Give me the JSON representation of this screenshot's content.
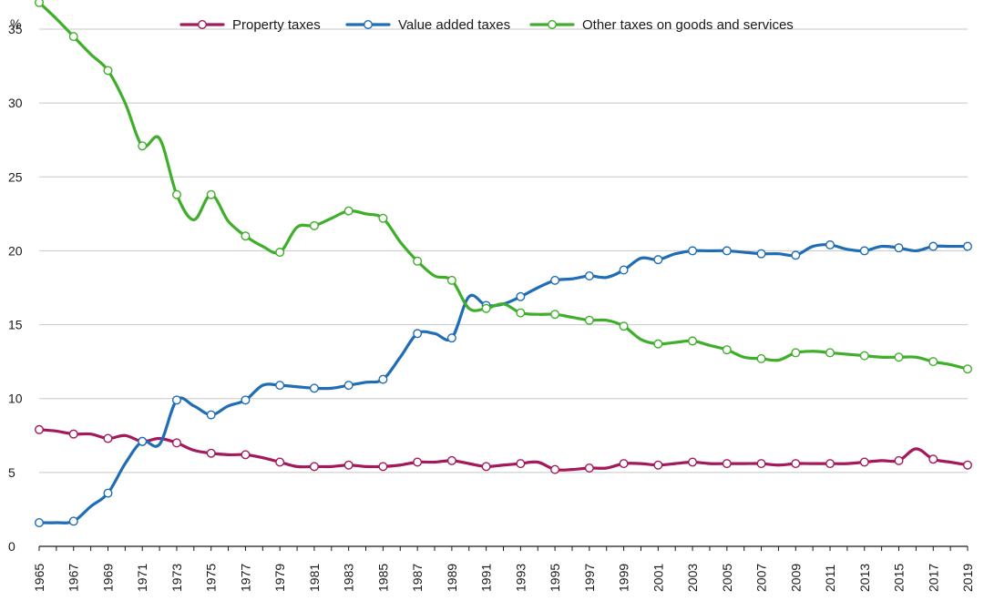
{
  "chart_data": {
    "type": "line",
    "y_unit_label": "%",
    "ylim": [
      0,
      35
    ],
    "yticks": [
      0,
      5,
      10,
      15,
      20,
      25,
      30,
      35
    ],
    "grid": "horizontal",
    "legend_position": "top",
    "x": [
      1965,
      1966,
      1967,
      1968,
      1969,
      1970,
      1971,
      1972,
      1973,
      1974,
      1975,
      1976,
      1977,
      1978,
      1979,
      1980,
      1981,
      1982,
      1983,
      1984,
      1985,
      1986,
      1987,
      1988,
      1989,
      1990,
      1991,
      1992,
      1993,
      1994,
      1995,
      1996,
      1997,
      1998,
      1999,
      2000,
      2001,
      2002,
      2003,
      2004,
      2005,
      2006,
      2007,
      2008,
      2009,
      2010,
      2011,
      2012,
      2013,
      2014,
      2015,
      2016,
      2017,
      2018,
      2019
    ],
    "xtick_labels": [
      "1965",
      "1967",
      "1969",
      "1971",
      "1973",
      "1975",
      "1977",
      "1979",
      "1981",
      "1983",
      "1985",
      "1987",
      "1989",
      "1991",
      "1993",
      "1995",
      "1997",
      "1999",
      "2001",
      "2003",
      "2005",
      "2007",
      "2009",
      "2011",
      "2013",
      "2015",
      "2017",
      "2019"
    ],
    "series": [
      {
        "name": "Property taxes",
        "color": "#a3195b",
        "values": [
          7.9,
          7.8,
          7.6,
          7.6,
          7.3,
          7.5,
          7.1,
          7.3,
          7.0,
          6.5,
          6.3,
          6.2,
          6.2,
          6.0,
          5.7,
          5.4,
          5.4,
          5.4,
          5.5,
          5.4,
          5.4,
          5.5,
          5.7,
          5.7,
          5.8,
          5.6,
          5.4,
          5.5,
          5.6,
          5.7,
          5.2,
          5.2,
          5.3,
          5.3,
          5.6,
          5.6,
          5.5,
          5.6,
          5.7,
          5.6,
          5.6,
          5.6,
          5.6,
          5.5,
          5.6,
          5.6,
          5.6,
          5.6,
          5.7,
          5.8,
          5.8,
          6.6,
          5.9,
          5.7,
          5.5
        ]
      },
      {
        "name": "Value added taxes",
        "color": "#1f6db4",
        "values": [
          1.6,
          1.6,
          1.7,
          2.7,
          3.6,
          5.6,
          7.1,
          6.9,
          9.9,
          9.5,
          8.9,
          9.5,
          9.9,
          10.9,
          10.9,
          10.8,
          10.7,
          10.7,
          10.9,
          11.1,
          11.3,
          12.8,
          14.4,
          14.4,
          14.1,
          16.9,
          16.3,
          16.4,
          16.9,
          17.5,
          18.0,
          18.1,
          18.3,
          18.2,
          18.7,
          19.5,
          19.4,
          19.8,
          20.0,
          20.0,
          20.0,
          19.9,
          19.8,
          19.8,
          19.7,
          20.3,
          20.4,
          20.1,
          20.0,
          20.3,
          20.2,
          20.0,
          20.3,
          20.3,
          20.3
        ]
      },
      {
        "name": "Other taxes on goods and services",
        "color": "#3fae2a",
        "values": [
          36.8,
          35.7,
          34.5,
          33.3,
          32.2,
          30.0,
          27.1,
          27.6,
          23.8,
          22.1,
          23.8,
          22.0,
          21.0,
          20.3,
          19.9,
          21.6,
          21.7,
          22.2,
          22.7,
          22.5,
          22.2,
          20.6,
          19.3,
          18.3,
          18.0,
          16.1,
          16.1,
          16.4,
          15.8,
          15.7,
          15.7,
          15.5,
          15.3,
          15.3,
          14.9,
          14.0,
          13.7,
          13.8,
          13.9,
          13.6,
          13.3,
          12.8,
          12.7,
          12.6,
          13.1,
          13.2,
          13.1,
          13.0,
          12.9,
          12.8,
          12.8,
          12.8,
          12.5,
          12.3,
          12.0
        ]
      }
    ],
    "marker_years": [
      1965,
      1967,
      1969,
      1971,
      1973,
      1975,
      1977,
      1979,
      1981,
      1983,
      1985,
      1987,
      1989,
      1991,
      1993,
      1995,
      1997,
      1999,
      2001,
      2003,
      2005,
      2007,
      2009,
      2011,
      2013,
      2015,
      2017,
      2019
    ]
  }
}
